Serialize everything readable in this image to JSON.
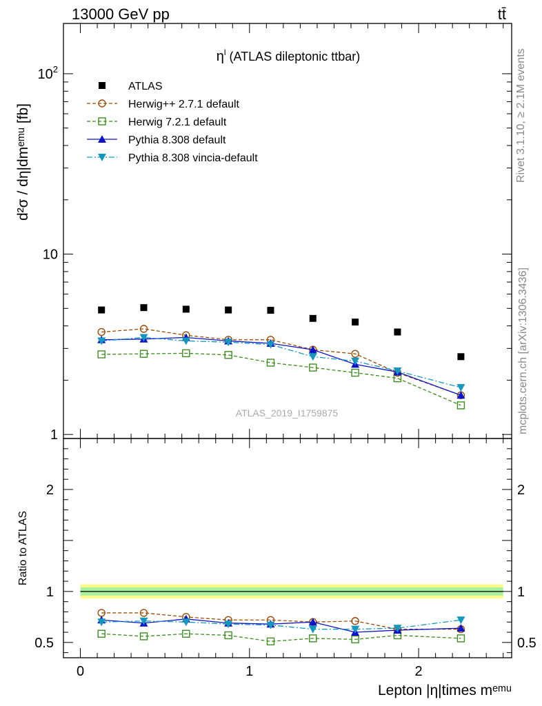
{
  "header": {
    "energy_label": "13000 GeV pp",
    "process_label": "tt̄"
  },
  "side_labels": {
    "rivet": "Rivet 3.1.10, ≥ 2.1M events",
    "mcplots": "mcplots.cern.ch [arXiv:1306.3436]"
  },
  "watermark": "ATLAS_2019_I1759875",
  "chart_data": [
    {
      "type": "line",
      "panel": "main",
      "title_main": "η",
      "title_sup": "l",
      "title_rest": " (ATLAS dileptonic ttbar)",
      "ylabel": "d²σ / dη|dmᵉᵐᵘ [fb]",
      "yscale": "log",
      "ylim": [
        0.95,
        190
      ],
      "xlim": [
        -0.1,
        2.55
      ],
      "ytick_labels": [
        {
          "v": 1,
          "text": "1"
        },
        {
          "v": 10,
          "text": "10"
        },
        {
          "v": 100,
          "text": "10",
          "sup": "2"
        }
      ],
      "x": [
        0.125,
        0.375,
        0.625,
        0.875,
        1.125,
        1.375,
        1.625,
        1.875,
        2.25
      ],
      "series": [
        {
          "name": "ATLAS",
          "color": "#000000",
          "marker": "square-filled",
          "dash": "none",
          "values": [
            4.9,
            5.05,
            4.95,
            4.9,
            4.88,
            4.4,
            4.2,
            3.7,
            2.7
          ]
        },
        {
          "name": "Herwig++ 2.7.1 default",
          "color": "#9c4a06",
          "marker": "circle-open",
          "dash": "5,3",
          "values": [
            3.7,
            3.85,
            3.55,
            3.35,
            3.35,
            2.95,
            2.8,
            2.2,
            1.65
          ]
        },
        {
          "name": "Herwig 7.2.1 default",
          "color": "#3c8c1e",
          "marker": "square-open",
          "dash": "5,3",
          "values": [
            2.78,
            2.8,
            2.82,
            2.76,
            2.5,
            2.35,
            2.2,
            2.05,
            1.45
          ]
        },
        {
          "name": "Pythia 8.308 default",
          "color": "#0a14c8",
          "marker": "triangle-up",
          "dash": "none",
          "values": [
            3.35,
            3.38,
            3.45,
            3.3,
            3.2,
            2.95,
            2.45,
            2.22,
            1.65
          ]
        },
        {
          "name": "Pythia 8.308 vincia-default",
          "color": "#1497be",
          "marker": "triangle-down",
          "dash": "8,3,2,3",
          "values": [
            3.3,
            3.45,
            3.3,
            3.25,
            3.15,
            2.7,
            2.55,
            2.25,
            1.82
          ]
        }
      ]
    },
    {
      "type": "line",
      "panel": "ratio",
      "ylabel": "Ratio to ATLAS",
      "xlabel": "Lepton |η|times mᵉᵐᵘ",
      "ylim": [
        0.35,
        2.5
      ],
      "xlim": [
        -0.1,
        2.55
      ],
      "yticks": [
        0.5,
        1,
        2
      ],
      "ytick_labels": [
        "0.5",
        "1",
        "2"
      ],
      "xticks": [
        0,
        1,
        2
      ],
      "xtick_labels": [
        "0",
        "1",
        "2"
      ],
      "band_inner": {
        "low": 0.96,
        "high": 1.04,
        "color": "#a9f0a0"
      },
      "band_outer": {
        "low": 0.93,
        "high": 1.07,
        "color": "#fbfa8c"
      },
      "x": [
        0.125,
        0.375,
        0.625,
        0.875,
        1.125,
        1.375,
        1.625,
        1.875,
        2.25
      ],
      "series": [
        {
          "name": "Herwig++ 2.7.1 default",
          "color": "#9c4a06",
          "marker": "circle-open",
          "dash": "5,3",
          "values": [
            0.79,
            0.79,
            0.75,
            0.72,
            0.72,
            0.7,
            0.71,
            0.63,
            0.63
          ]
        },
        {
          "name": "Herwig 7.2.1 default",
          "color": "#3c8c1e",
          "marker": "square-open",
          "dash": "5,3",
          "values": [
            0.585,
            0.56,
            0.585,
            0.57,
            0.51,
            0.54,
            0.53,
            0.57,
            0.54
          ]
        },
        {
          "name": "Pythia 8.308 default",
          "color": "#0a14c8",
          "marker": "triangle-up",
          "dash": "none",
          "values": [
            0.72,
            0.69,
            0.73,
            0.69,
            0.68,
            0.7,
            0.6,
            0.62,
            0.64
          ]
        },
        {
          "name": "Pythia 8.308 vincia-default",
          "color": "#1497be",
          "marker": "triangle-down",
          "dash": "8,3,2,3",
          "values": [
            0.7,
            0.71,
            0.7,
            0.68,
            0.67,
            0.63,
            0.63,
            0.64,
            0.72
          ]
        }
      ]
    }
  ]
}
